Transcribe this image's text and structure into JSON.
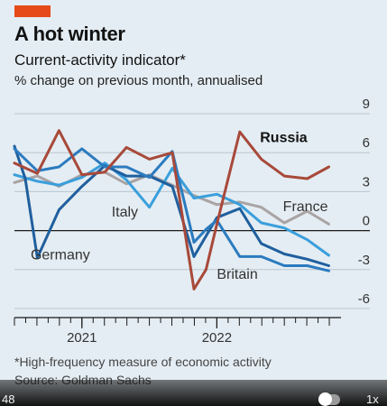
{
  "header": {
    "title": "A hot winter",
    "subtitle": "Current-activity indicator*",
    "subsubtitle": "% change on previous month, annualised"
  },
  "footer": {
    "footnote": "*High-frequency measure of economic activity",
    "source": "Source: Goldman Sachs"
  },
  "player": {
    "time": "48",
    "speed": "1x"
  },
  "colors": {
    "accent": "#e64a19",
    "background": "#e4edf3",
    "russia": "#a8493a",
    "france": "#a9a3a4",
    "italy": "#3a9fdc",
    "germany": "#1f5f9e",
    "britain": "#2b7bbf",
    "grid": "#b9c6cf"
  },
  "chart_data": {
    "type": "line",
    "title": "A hot winter",
    "subtitle": "Current-activity indicator*",
    "ylabel": "% change on previous month, annualised",
    "ylim": [
      -6,
      9
    ],
    "yticks": [
      9,
      6,
      3,
      0,
      -3,
      -6
    ],
    "ytick_labels": [
      "9",
      "6",
      "3",
      "0",
      "-3",
      "-6"
    ],
    "xlim": [
      2020.5,
      2022.92
    ],
    "xtick_labels": [
      {
        "label": "2021",
        "x": 2021.0
      },
      {
        "label": "2022",
        "x": 2022.0
      }
    ],
    "grid": true,
    "legend": "inline labels",
    "series": [
      {
        "name": "Russia",
        "color_key": "russia",
        "bold_label": true,
        "x": [
          2020.5,
          2020.67,
          2020.83,
          2021.0,
          2021.17,
          2021.33,
          2021.5,
          2021.67,
          2021.83,
          2021.92,
          2022.0,
          2022.17,
          2022.33,
          2022.5,
          2022.67,
          2022.83
        ],
        "y": [
          5.2,
          4.4,
          7.7,
          4.3,
          4.5,
          6.4,
          5.5,
          6.0,
          -4.5,
          -3.0,
          0.5,
          7.6,
          5.5,
          4.2,
          4.0,
          4.9
        ]
      },
      {
        "name": "France",
        "color_key": "france",
        "bold_label": false,
        "x": [
          2020.5,
          2020.67,
          2020.83,
          2021.0,
          2021.17,
          2021.33,
          2021.5,
          2021.67,
          2021.83,
          2022.0,
          2022.17,
          2022.33,
          2022.5,
          2022.67,
          2022.83
        ],
        "y": [
          3.7,
          4.2,
          3.4,
          4.3,
          4.5,
          3.6,
          4.3,
          3.5,
          2.7,
          2.0,
          2.2,
          1.8,
          0.6,
          1.5,
          0.5
        ]
      },
      {
        "name": "Italy",
        "color_key": "italy",
        "bold_label": false,
        "x": [
          2020.5,
          2020.67,
          2020.83,
          2021.0,
          2021.17,
          2021.33,
          2021.5,
          2021.67,
          2021.83,
          2022.0,
          2022.17,
          2022.33,
          2022.5,
          2022.67,
          2022.83
        ],
        "y": [
          4.3,
          3.8,
          3.5,
          4.1,
          5.2,
          3.9,
          1.8,
          4.8,
          2.5,
          2.8,
          2.0,
          0.6,
          0.2,
          -0.7,
          -1.9
        ]
      },
      {
        "name": "Germany",
        "color_key": "germany",
        "bold_label": false,
        "x": [
          2020.5,
          2020.58,
          2020.67,
          2020.83,
          2021.0,
          2021.17,
          2021.33,
          2021.5,
          2021.67,
          2021.83,
          2022.0,
          2022.17,
          2022.33,
          2022.5,
          2022.67,
          2022.83
        ],
        "y": [
          6.5,
          4.0,
          -2.1,
          1.6,
          3.4,
          5.0,
          4.2,
          4.2,
          3.4,
          -2.0,
          1.0,
          1.7,
          -1.0,
          -1.8,
          -2.2,
          -2.7
        ]
      },
      {
        "name": "Britain",
        "color_key": "britain",
        "bold_label": false,
        "x": [
          2020.5,
          2020.67,
          2020.83,
          2021.0,
          2021.17,
          2021.33,
          2021.5,
          2021.67,
          2021.83,
          2021.92,
          2022.0,
          2022.17,
          2022.33,
          2022.5,
          2022.67,
          2022.83
        ],
        "y": [
          6.3,
          4.6,
          4.9,
          6.3,
          4.9,
          4.9,
          4.1,
          6.1,
          -0.9,
          0.1,
          0.8,
          -2.0,
          -2.0,
          -2.7,
          -2.7,
          -3.1
        ]
      }
    ]
  }
}
